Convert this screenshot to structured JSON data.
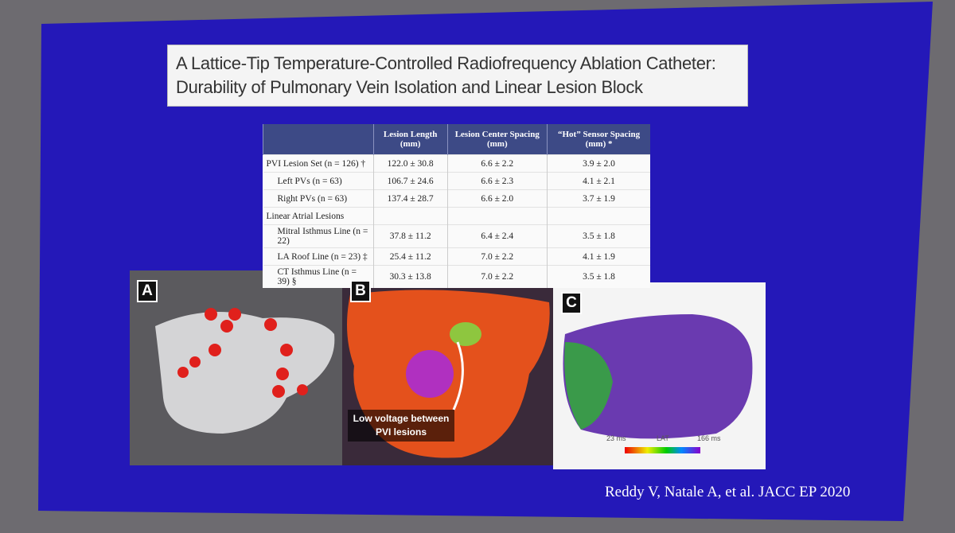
{
  "slide": {
    "title": "A Lattice-Tip Temperature-Controlled Radiofrequency Ablation Catheter: Durability of Pulmonary Vein Isolation and Linear Lesion Block",
    "citation": "Reddy V, Natale A, et al. JACC EP 2020"
  },
  "table": {
    "header": [
      "Lesion Length (mm)",
      "Lesion Center Spacing (mm)",
      "“Hot” Sensor Spacing (mm) *"
    ],
    "rows": [
      {
        "label": "PVI Lesion Set (n = 126) †",
        "cells": [
          "122.0 ± 30.8",
          "6.6 ± 2.2",
          "3.9 ± 2.0"
        ]
      },
      {
        "label": "Left PVs (n = 63)",
        "cells": [
          "106.7 ± 24.6",
          "6.6 ± 2.3",
          "4.1 ± 2.1"
        ]
      },
      {
        "label": "Right PVs (n = 63)",
        "cells": [
          "137.4 ± 28.7",
          "6.6 ± 2.0",
          "3.7 ± 1.9"
        ]
      },
      {
        "label": "Linear Atrial Lesions"
      },
      {
        "label": "Mitral Isthmus Line (n = 22)",
        "cells": [
          "37.8 ± 11.2",
          "6.4 ± 2.4",
          "3.5 ± 1.8"
        ]
      },
      {
        "label": "LA Roof Line (n = 23) ‡",
        "cells": [
          "25.4 ± 11.2",
          "7.0 ± 2.2",
          "4.1 ± 1.9"
        ]
      },
      {
        "label": "CT Isthmus Line (n = 39) §",
        "cells": [
          "30.3 ± 13.8",
          "7.0 ± 2.2",
          "3.5 ± 1.8"
        ]
      }
    ]
  },
  "figures": [
    {
      "label": "A"
    },
    {
      "label": "B",
      "annotation": "Low voltage between PVI lesions"
    },
    {
      "label": "C",
      "scale": [
        "23 ms",
        "LAT",
        "166 ms"
      ]
    }
  ]
}
